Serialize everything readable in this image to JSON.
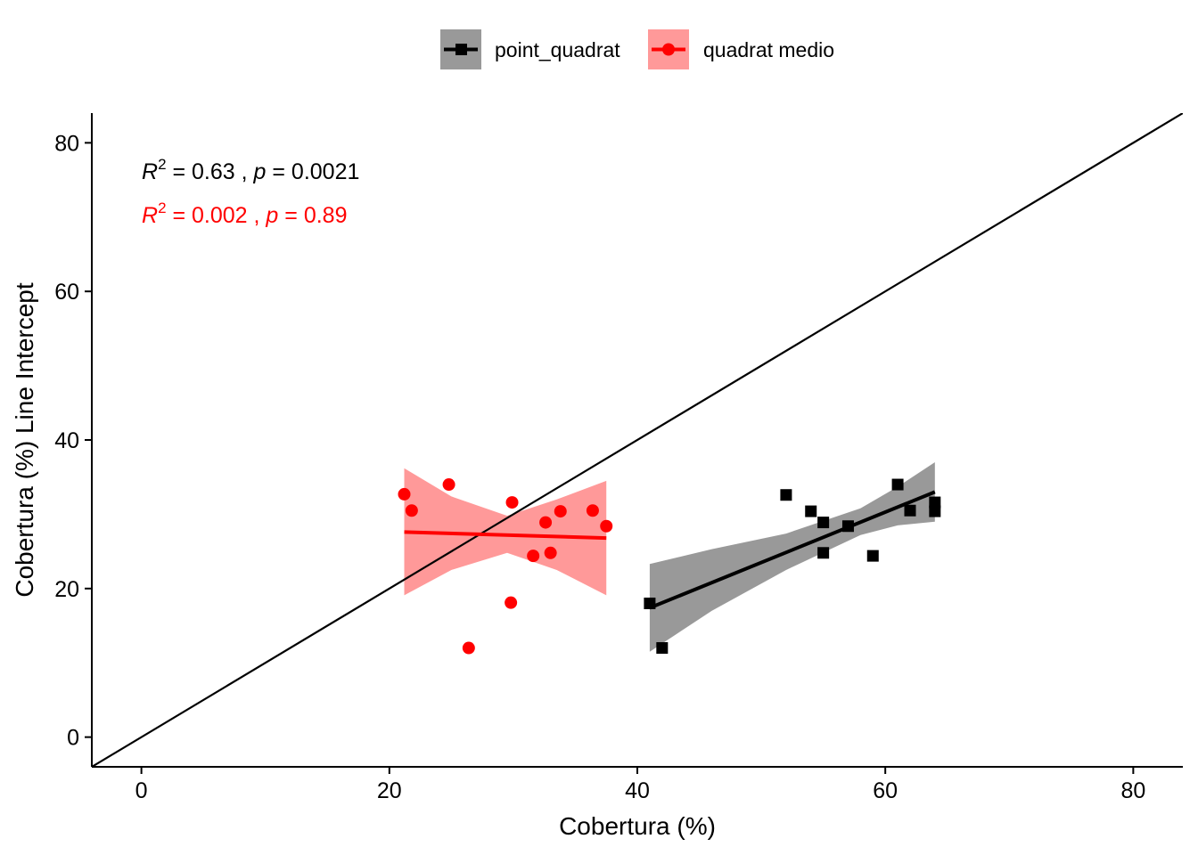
{
  "chart_data": {
    "type": "scatter",
    "xlabel": "Cobertura (%)",
    "ylabel": "Cobertura (%) Line Intercept",
    "xlim": [
      -4,
      84
    ],
    "ylim": [
      -4,
      84
    ],
    "x_ticks": [
      0,
      20,
      40,
      60,
      80
    ],
    "y_ticks": [
      0,
      20,
      40,
      60,
      80
    ],
    "x_tick_labels": [
      "0",
      "20",
      "40",
      "60",
      "80"
    ],
    "y_tick_labels": [
      "0",
      "20",
      "40",
      "60",
      "80"
    ],
    "grid": false,
    "legend_position": "top",
    "reference_line": {
      "type": "identity",
      "slope": 1,
      "intercept": 0,
      "color": "#000000"
    },
    "series": [
      {
        "name": "point_quadrat",
        "marker": "square",
        "color": "#000000",
        "ribbon_color": "#999999",
        "points": [
          {
            "x": 41,
            "y": 18
          },
          {
            "x": 42,
            "y": 12
          },
          {
            "x": 52,
            "y": 32.6
          },
          {
            "x": 54,
            "y": 30.4
          },
          {
            "x": 55,
            "y": 28.9
          },
          {
            "x": 55,
            "y": 24.8
          },
          {
            "x": 57,
            "y": 28.4
          },
          {
            "x": 59,
            "y": 24.4
          },
          {
            "x": 61,
            "y": 34
          },
          {
            "x": 62,
            "y": 30.5
          },
          {
            "x": 64,
            "y": 31.6
          },
          {
            "x": 64,
            "y": 30.4
          }
        ],
        "fit": {
          "x_start": 41,
          "x_end": 64,
          "y_start": 17.4,
          "y_end": 33
        },
        "ribbon": [
          {
            "x": 41,
            "lower": 11.5,
            "upper": 23.3
          },
          {
            "x": 46,
            "lower": 17,
            "upper": 25.3
          },
          {
            "x": 52,
            "lower": 22.5,
            "upper": 27.4
          },
          {
            "x": 58,
            "lower": 27.2,
            "upper": 30.8
          },
          {
            "x": 61,
            "lower": 28.5,
            "upper": 33.7
          },
          {
            "x": 64,
            "lower": 29,
            "upper": 37
          }
        ],
        "stat": {
          "r2": "0.63",
          "p": "0.0021"
        }
      },
      {
        "name": "quadrat medio",
        "marker": "circle",
        "color": "#ff0000",
        "ribbon_color": "#ff9999",
        "points": [
          {
            "x": 21.2,
            "y": 32.7
          },
          {
            "x": 21.8,
            "y": 30.5
          },
          {
            "x": 24.8,
            "y": 34
          },
          {
            "x": 26.4,
            "y": 12
          },
          {
            "x": 29.8,
            "y": 18.1
          },
          {
            "x": 29.9,
            "y": 31.6
          },
          {
            "x": 31.6,
            "y": 24.4
          },
          {
            "x": 32.6,
            "y": 28.9
          },
          {
            "x": 33,
            "y": 24.8
          },
          {
            "x": 33.8,
            "y": 30.4
          },
          {
            "x": 36.4,
            "y": 30.5
          },
          {
            "x": 37.5,
            "y": 28.4
          }
        ],
        "fit": {
          "x_start": 21.2,
          "x_end": 37.5,
          "y_start": 27.6,
          "y_end": 26.8
        },
        "ribbon": [
          {
            "x": 21.2,
            "lower": 19.1,
            "upper": 36.2
          },
          {
            "x": 25,
            "lower": 22.5,
            "upper": 32.4
          },
          {
            "x": 29.5,
            "lower": 24.8,
            "upper": 29.8
          },
          {
            "x": 33.5,
            "lower": 22.5,
            "upper": 32
          },
          {
            "x": 37.5,
            "lower": 19.1,
            "upper": 34.5
          }
        ],
        "stat": {
          "r2": "0.002",
          "p": "0.89"
        }
      }
    ]
  }
}
